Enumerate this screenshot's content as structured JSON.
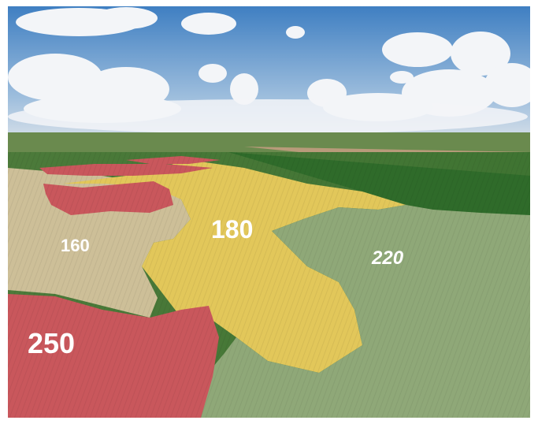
{
  "photo": {
    "subject": "aerial-field-zones",
    "zone_labels": {
      "light": "160",
      "yellow": "180",
      "green": "220",
      "red": "250"
    },
    "colors": {
      "sky_top": "#3f7fc2",
      "sky_bottom": "#c9d9ea",
      "cloud": "#f4f6f8",
      "far_field": "#4d7a3c",
      "dark_field": "#2f6b2a",
      "light_zone": "#cdbf98",
      "yellow_zone": "#e2c75a",
      "green_zone": "#8fa878",
      "red_zone": "#c9575c",
      "label_text": "#ffffff"
    }
  }
}
